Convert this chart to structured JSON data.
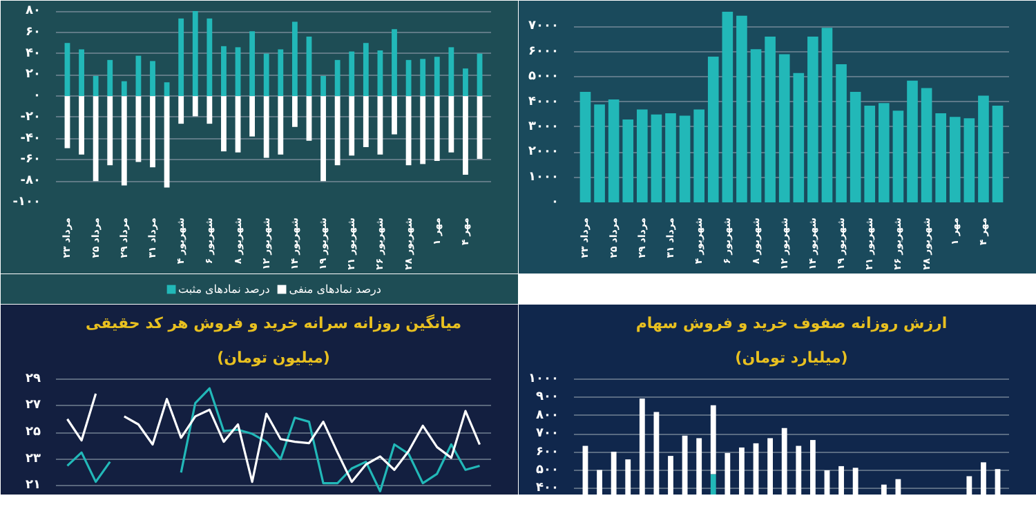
{
  "chart_data": [
    {
      "type": "bar",
      "categories": [
        "۲۳ مرداد",
        null,
        "۲۵ مرداد",
        null,
        "۲۹ مرداد",
        null,
        "۳۱ مرداد",
        null,
        "۴ شهریور",
        null,
        "۶ شهریور",
        null,
        "۸ شهریور",
        null,
        "۱۲ شهریور",
        null,
        "۱۴ شهریور",
        null,
        "۱۹ شهریور",
        null,
        "۲۱ شهریور",
        null,
        "۲۶ شهریور",
        null,
        "۲۸ شهریور",
        null,
        "۱ مهر",
        null,
        "۴ مهر",
        null
      ],
      "series": [
        {
          "name": "درصد نمادهای مثبت",
          "color": "#22b8b8",
          "values": [
            50,
            44,
            19,
            34,
            14,
            38,
            33,
            13,
            73,
            80,
            73,
            47,
            46,
            61,
            40,
            44,
            70,
            56,
            19,
            34,
            42,
            50,
            43,
            63,
            34,
            35,
            37,
            46,
            26,
            40
          ]
        },
        {
          "name": "درصد نمادهای منفی",
          "color": "#ffffff",
          "values": [
            -49,
            -55,
            -80,
            -65,
            -84,
            -62,
            -67,
            -86,
            -26,
            -19,
            -26,
            -52,
            -53,
            -38,
            -58,
            -55,
            -29,
            -42,
            -80,
            -65,
            -56,
            -48,
            -55,
            -36,
            -65,
            -64,
            -61,
            -53,
            -74,
            -59
          ]
        }
      ],
      "ylim": [
        -100,
        82
      ],
      "yticks": [
        {
          "value": -100,
          "label": "-۱۰۰"
        },
        {
          "value": -80,
          "label": "-۸۰"
        },
        {
          "value": -60,
          "label": "-۶۰"
        },
        {
          "value": -40,
          "label": "-۴۰"
        },
        {
          "value": -20,
          "label": "-۲۰"
        },
        {
          "value": 0,
          "label": "۰"
        },
        {
          "value": 20,
          "label": "۲۰"
        },
        {
          "value": 40,
          "label": "۴۰"
        },
        {
          "value": 60,
          "label": "۶۰"
        },
        {
          "value": 80,
          "label": "۸۰"
        }
      ],
      "grid": "y",
      "legend": "bottom",
      "stacked": true
    },
    {
      "type": "bar",
      "categories": [
        "۲۳ مرداد",
        null,
        "۲۵ مرداد",
        null,
        "۲۹ مرداد",
        null,
        "۳۱ مرداد",
        null,
        "۴ شهریور",
        null,
        "۶ شهریور",
        null,
        "۸ شهریور",
        null,
        "۱۲ شهریور",
        null,
        "۱۴ شهریور",
        null,
        "۱۹ شهریور",
        null,
        "۲۱ شهریور",
        null,
        "۲۶ شهریور",
        null,
        "۲۸ شهریور",
        null,
        "۱ مهر",
        null,
        "۴ مهر",
        null
      ],
      "series": [
        {
          "color": "#22b8b8",
          "values": [
            4400,
            3900,
            4100,
            3300,
            3700,
            3500,
            3550,
            3450,
            3700,
            5800,
            7590,
            7430,
            6100,
            6600,
            5900,
            5150,
            6600,
            6950,
            5500,
            4400,
            3850,
            3950,
            3650,
            4850,
            4550,
            3550,
            3400,
            3350,
            4250,
            3850
          ]
        }
      ],
      "ylim": [
        0,
        7700
      ],
      "yticks": [
        {
          "value": 0,
          "label": "۰"
        },
        {
          "value": 1000,
          "label": "۱۰۰۰"
        },
        {
          "value": 2000,
          "label": "۲۰۰۰"
        },
        {
          "value": 3000,
          "label": "۳۰۰۰"
        },
        {
          "value": 4000,
          "label": "۴۰۰۰"
        },
        {
          "value": 5000,
          "label": "۵۰۰۰"
        },
        {
          "value": 6000,
          "label": "۶۰۰۰"
        },
        {
          "value": 7000,
          "label": "۷۰۰۰"
        }
      ],
      "grid": "y"
    },
    {
      "type": "line",
      "title": "میانگین روزانه سرانه خرید و فروش هر کد حقیقی",
      "subtitle": "(میلیون تومان)",
      "categories": [
        null,
        null,
        null,
        null,
        null,
        null,
        null,
        null,
        null,
        null,
        null,
        null,
        null,
        null,
        null,
        null,
        null,
        null,
        null,
        null,
        null,
        null,
        null,
        null,
        null,
        null,
        null,
        null,
        null,
        null
      ],
      "series": [
        {
          "color": "#22b8b8",
          "values": [
            22.5,
            23.5,
            21.3,
            22.8,
            null,
            null,
            null,
            null,
            22.0,
            27.2,
            28.3,
            25.1,
            25.2,
            24.9,
            24.3,
            23.0,
            26.1,
            25.8,
            21.2,
            21.2,
            22.3,
            22.8,
            20.6,
            24.1,
            23.4,
            21.2,
            21.9,
            24.1,
            22.2,
            22.5
          ]
        },
        {
          "color": "#ffffff",
          "values": [
            26.0,
            24.4,
            27.9,
            null,
            26.2,
            25.6,
            24.1,
            27.5,
            24.6,
            26.2,
            26.7,
            24.3,
            25.6,
            21.3,
            26.4,
            24.5,
            24.3,
            24.2,
            25.8,
            23.5,
            21.3,
            22.6,
            23.2,
            22.2,
            23.6,
            25.5,
            23.9,
            23.1,
            26.6,
            24.1
          ]
        }
      ],
      "ylim": [
        20.3,
        29.4
      ],
      "yticks": [
        {
          "value": 21,
          "label": "۲۱"
        },
        {
          "value": 23,
          "label": "۲۳"
        },
        {
          "value": 25,
          "label": "۲۵"
        },
        {
          "value": 27,
          "label": "۲۷"
        },
        {
          "value": 29,
          "label": "۲۹"
        }
      ],
      "grid": "y",
      "tick_labels": "y"
    },
    {
      "type": "bar",
      "title": "ارزش روزانه صفوف خرید و فروش سهام",
      "subtitle": "(میلیارد تومان)",
      "categories": [
        null,
        null,
        null,
        null,
        null,
        null,
        null,
        null,
        null,
        null,
        null,
        null,
        null,
        null,
        null,
        null,
        null,
        null,
        null,
        null,
        null,
        null,
        null,
        null,
        null,
        null,
        null,
        null,
        null,
        null
      ],
      "series": [
        {
          "color": "#22b8b8",
          "values": [
            null,
            null,
            null,
            null,
            null,
            null,
            null,
            null,
            null,
            480,
            null,
            null,
            null,
            null,
            null,
            null,
            null,
            null,
            null,
            null,
            null,
            null,
            null,
            null,
            null,
            null,
            null,
            null,
            null,
            null
          ]
        },
        {
          "color": "#ffffff",
          "values": [
            635,
            503,
            603,
            561,
            894,
            820,
            580,
            691,
            677,
            377,
            596,
            626,
            649,
            677,
            732,
            635,
            667,
            501,
            524,
            515,
            null,
            423,
            453,
            null,
            null,
            null,
            null,
            469,
            545,
            508
          ]
        }
      ],
      "stacked": true,
      "ylim": [
        365,
        1030
      ],
      "yticks": [
        {
          "value": 400,
          "label": "۴۰۰"
        },
        {
          "value": 500,
          "label": "۵۰۰"
        },
        {
          "value": 600,
          "label": "۶۰۰"
        },
        {
          "value": 700,
          "label": "۷۰۰"
        },
        {
          "value": 800,
          "label": "۸۰۰"
        },
        {
          "value": 900,
          "label": "۹۰۰"
        },
        {
          "value": 1000,
          "label": "۱۰۰۰"
        }
      ],
      "grid": "y",
      "tick_labels": "y"
    }
  ]
}
